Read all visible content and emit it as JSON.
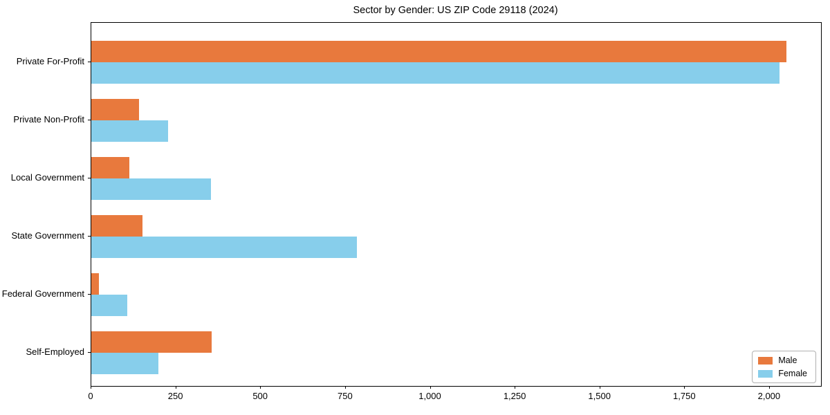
{
  "title": "Sector by Gender: US ZIP Code 29118 (2024)",
  "chart_data": {
    "type": "bar",
    "orientation": "horizontal",
    "title": "Sector by Gender: US ZIP Code 29118 (2024)",
    "categories": [
      "Private For-Profit",
      "Private Non-Profit",
      "Local Government",
      "State Government",
      "Federal Government",
      "Self-Employed"
    ],
    "series": [
      {
        "name": "Male",
        "color": "#E8793D",
        "values": [
          2049,
          141,
          113,
          151,
          22,
          355
        ]
      },
      {
        "name": "Female",
        "color": "#87CEEB",
        "values": [
          2029,
          226,
          353,
          783,
          106,
          198
        ]
      }
    ],
    "xlabel": "",
    "ylabel": "",
    "xlim": [
      0,
      2151
    ],
    "x_ticks": [
      0,
      250,
      500,
      750,
      1000,
      1250,
      1500,
      1750,
      2000
    ],
    "x_tick_labels": [
      "0",
      "250",
      "500",
      "750",
      "1,000",
      "1,250",
      "1,500",
      "1,750",
      "2,000"
    ],
    "grid": false,
    "legend": {
      "position": "lower right",
      "entries": [
        "Male",
        "Female"
      ]
    }
  }
}
